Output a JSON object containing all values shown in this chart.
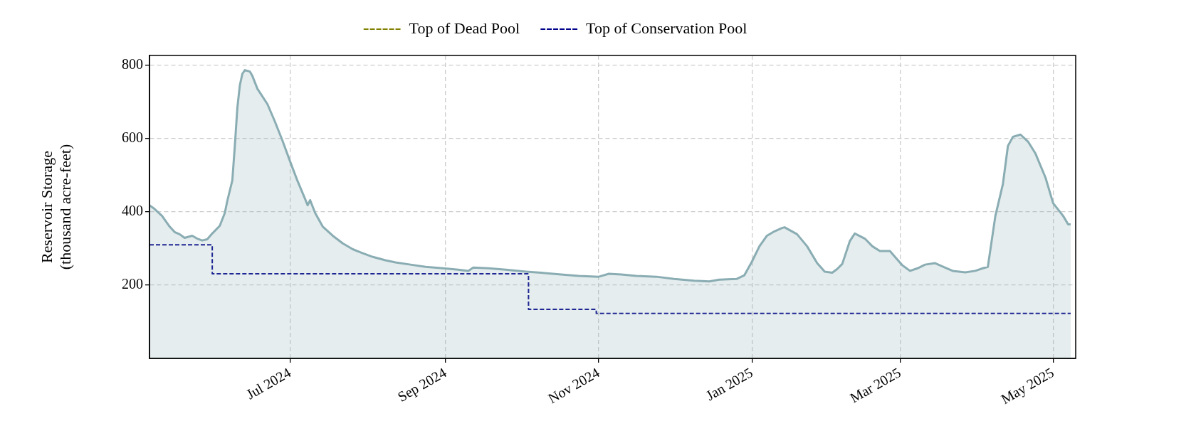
{
  "chart_data": {
    "type": "area",
    "ylabel": "Reservoir Storage\n(thousand acre-feet)",
    "xlim": [
      "2024-05-06",
      "2025-05-10"
    ],
    "xticks": [
      {
        "value": "2024-07-01",
        "label": "Jul 2024"
      },
      {
        "value": "2024-09-01",
        "label": "Sep 2024"
      },
      {
        "value": "2024-11-01",
        "label": "Nov 2024"
      },
      {
        "value": "2025-01-01",
        "label": "Jan 2025"
      },
      {
        "value": "2025-03-01",
        "label": "Mar 2025"
      },
      {
        "value": "2025-05-01",
        "label": "May 2025"
      }
    ],
    "ylim": [
      0,
      827
    ],
    "yticks": [
      200,
      400,
      600,
      800
    ],
    "grid": true,
    "legend": "top",
    "series": [
      {
        "color": "#8aadb3",
        "x": [
          "2024-05-06",
          "2024-05-08",
          "2024-05-11",
          "2024-05-14",
          "2024-05-16",
          "2024-05-18",
          "2024-05-20",
          "2024-05-23",
          "2024-05-25",
          "2024-05-27",
          "2024-05-29",
          "2024-05-31",
          "2024-06-03",
          "2024-06-05",
          "2024-06-06",
          "2024-06-08",
          "2024-06-09",
          "2024-06-10",
          "2024-06-11",
          "2024-06-12",
          "2024-06-13",
          "2024-06-15",
          "2024-06-16",
          "2024-06-18",
          "2024-06-22",
          "2024-06-25",
          "2024-06-28",
          "2024-07-01",
          "2024-07-04",
          "2024-07-07",
          "2024-07-08",
          "2024-07-09",
          "2024-07-11",
          "2024-07-14",
          "2024-07-18",
          "2024-07-22",
          "2024-07-26",
          "2024-07-30",
          "2024-08-03",
          "2024-08-08",
          "2024-08-12",
          "2024-08-18",
          "2024-08-24",
          "2024-08-31",
          "2024-09-06",
          "2024-09-10",
          "2024-09-12",
          "2024-09-18",
          "2024-09-25",
          "2024-10-03",
          "2024-10-09",
          "2024-10-17",
          "2024-10-24",
          "2024-11-01",
          "2024-11-05",
          "2024-11-10",
          "2024-11-16",
          "2024-11-24",
          "2024-12-01",
          "2024-12-09",
          "2024-12-15",
          "2024-12-19",
          "2024-12-26",
          "2024-12-29",
          "2025-01-01",
          "2025-01-04",
          "2025-01-07",
          "2025-01-10",
          "2025-01-13",
          "2025-01-14",
          "2025-01-19",
          "2025-01-23",
          "2025-01-27",
          "2025-01-30",
          "2025-02-02",
          "2025-02-04",
          "2025-02-06",
          "2025-02-09",
          "2025-02-11",
          "2025-02-15",
          "2025-02-18",
          "2025-02-21",
          "2025-02-25",
          "2025-02-27",
          "2025-03-02",
          "2025-03-05",
          "2025-03-08",
          "2025-03-11",
          "2025-03-15",
          "2025-03-19",
          "2025-03-22",
          "2025-03-27",
          "2025-03-31",
          "2025-04-03",
          "2025-04-05",
          "2025-04-08",
          "2025-04-11",
          "2025-04-13",
          "2025-04-15",
          "2025-04-18",
          "2025-04-21",
          "2025-04-24",
          "2025-04-28",
          "2025-05-01",
          "2025-05-05",
          "2025-05-07",
          "2025-05-08"
        ],
        "values": [
          418,
          408,
          389,
          360,
          345,
          339,
          329,
          335,
          327,
          322,
          325,
          341,
          362,
          397,
          430,
          486,
          580,
          684,
          746,
          777,
          787,
          783,
          771,
          736,
          694,
          646,
          594,
          538,
          484,
          435,
          418,
          432,
          397,
          360,
          335,
          314,
          298,
          287,
          277,
          268,
          262,
          256,
          250,
          246,
          242,
          239,
          248,
          246,
          242,
          237,
          234,
          229,
          225,
          223,
          231,
          229,
          225,
          223,
          217,
          212,
          210,
          215,
          217,
          227,
          264,
          306,
          335,
          347,
          356,
          358,
          339,
          306,
          260,
          237,
          234,
          244,
          258,
          320,
          341,
          327,
          306,
          293,
          293,
          277,
          254,
          239,
          246,
          256,
          260,
          248,
          239,
          235,
          239,
          246,
          250,
          389,
          476,
          580,
          605,
          611,
          592,
          559,
          493,
          424,
          389,
          366,
          366
        ]
      },
      {
        "type": "step",
        "name": "Top of Dead Pool",
        "color": "#808000",
        "line_style": "dashed"
      },
      {
        "type": "step",
        "name": "Top of Conservation Pool",
        "color": "#00008b",
        "line_style": "dashed",
        "x": [
          "2024-05-06",
          "2024-05-31",
          "2024-10-04",
          "2024-10-31",
          "2025-05-08"
        ],
        "values": [
          310,
          231,
          134,
          123,
          123
        ]
      }
    ]
  }
}
